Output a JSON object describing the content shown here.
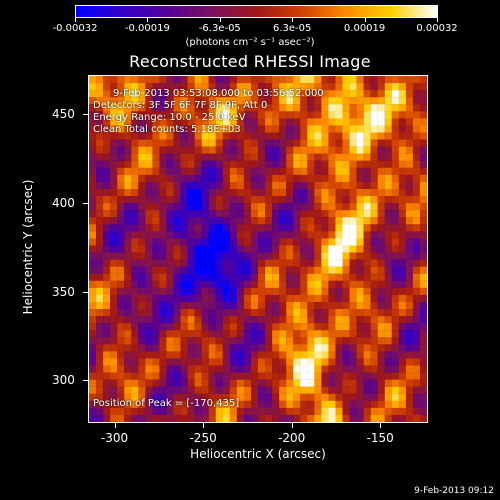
{
  "colorbar": {
    "colors": [
      "#0000ff",
      "#3300c8",
      "#55009a",
      "#7a1060",
      "#a01818",
      "#d04000",
      "#ff8c00",
      "#ffd000",
      "#ffffff"
    ],
    "ticks": [
      "-0.00032",
      "-0.00019",
      "-6.3e-05",
      "6.3e-05",
      "0.00019",
      "0.00032"
    ],
    "units": "(photons cm⁻² s⁻¹ asec⁻²)"
  },
  "chart_data": {
    "type": "heatmap",
    "title": "Reconstructed RHESSI Image",
    "xlabel": "Heliocentric X (arcsec)",
    "ylabel": "Heliocentric Y (arcsec)",
    "xlim": [
      -315,
      -123
    ],
    "ylim": [
      276,
      472
    ],
    "xticks": [
      "-300",
      "-250",
      "-200",
      "-150"
    ],
    "xtick_values": [
      -300,
      -250,
      -200,
      -150
    ],
    "yticks": [
      "300",
      "350",
      "400",
      "450"
    ],
    "ytick_values": [
      300,
      350,
      400,
      450
    ],
    "value_range": [
      -0.00032,
      0.00032
    ],
    "peak": [
      -170,
      435
    ]
  },
  "info": {
    "time": "9-Feb-2013 03:53:08.000 to 03:56:52.000",
    "detectors": "Detectors: 3F 5F 6F 7F 8F 9F, Att 0",
    "energy": "Energy Range: 10.0 - 25.0 keV",
    "clean": "Clean    Total counts: 5.18E+03",
    "peak_text": "Position of Peak = [-170,435]"
  },
  "footer": {
    "timestamp": "9-Feb-2013 09:12"
  }
}
